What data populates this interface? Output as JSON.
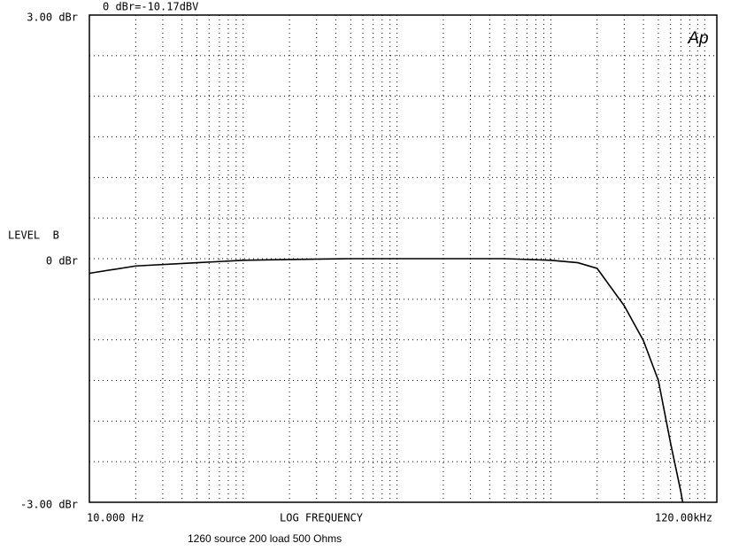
{
  "chart_data": {
    "type": "line",
    "header": "0 dBr=-10.17dBV",
    "y_label": "LEVEL  B",
    "x_label": "LOG FREQUENCY",
    "footer": "1260 source 200 load 500 Ohms",
    "logo": "Ap",
    "x": [
      10,
      20,
      50,
      100,
      200,
      500,
      1000,
      2000,
      5000,
      10000,
      15000,
      20000,
      30000,
      40000,
      50000,
      60000,
      70000,
      72000
    ],
    "values": [
      -0.18,
      -0.09,
      -0.05,
      -0.02,
      -0.01,
      0,
      0,
      0,
      0,
      -0.02,
      -0.05,
      -0.12,
      -0.58,
      -1.01,
      -1.5,
      -2.27,
      -2.87,
      -3
    ],
    "color": "#000000",
    "xlog": true,
    "xlim": [
      10,
      120000
    ],
    "ylim": [
      -3,
      3
    ],
    "xticks": [
      {
        "value": 10,
        "label": "10.000 Hz"
      },
      {
        "value": 120000,
        "label": "120.00kHz"
      }
    ],
    "yticks": [
      {
        "value": 3,
        "label": "3.00 dBr"
      },
      {
        "value": 0,
        "label": "0 dBr"
      },
      {
        "value": -3,
        "label": "-3.00 dBr"
      }
    ],
    "grid": true,
    "xgrid": [
      20,
      30,
      40,
      50,
      60,
      70,
      80,
      90,
      100,
      200,
      300,
      400,
      500,
      600,
      700,
      800,
      900,
      1000,
      2000,
      3000,
      4000,
      5000,
      6000,
      7000,
      8000,
      9000,
      10000,
      20000,
      30000,
      40000,
      50000,
      60000,
      70000,
      80000,
      90000,
      100000
    ],
    "ygrid": [
      2.5,
      2,
      1.5,
      1,
      0.5,
      0,
      -0.5,
      -1,
      -1.5,
      -2,
      -2.5
    ]
  }
}
